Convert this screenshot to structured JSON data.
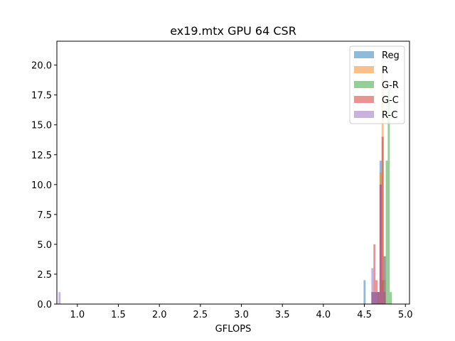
{
  "chart_data": {
    "type": "histogram",
    "title": "ex19.mtx GPU 64 CSR",
    "xlabel": "GFLOPS",
    "ylabel": "",
    "xlim": [
      0.75,
      5.05
    ],
    "ylim": [
      0,
      22
    ],
    "xticks": [
      1.0,
      1.5,
      2.0,
      2.5,
      3.0,
      3.5,
      4.0,
      4.5,
      5.0
    ],
    "xtick_labels": [
      "1.0",
      "1.5",
      "2.0",
      "2.5",
      "3.0",
      "3.5",
      "4.0",
      "4.5",
      "5.0"
    ],
    "yticks": [
      0,
      2.5,
      5,
      7.5,
      10,
      12.5,
      15,
      17.5,
      20
    ],
    "ytick_labels": [
      "0.0",
      "2.5",
      "5.0",
      "7.5",
      "10.0",
      "12.5",
      "15.0",
      "17.5",
      "20.0"
    ],
    "grid": false,
    "legend_position": "top-right",
    "series": [
      {
        "name": "Reg",
        "color": "#1f77b4",
        "bins": [
          {
            "x0": 4.49,
            "x1": 4.515,
            "count": 2
          },
          {
            "x0": 4.585,
            "x1": 4.61,
            "count": 1
          },
          {
            "x0": 4.61,
            "x1": 4.635,
            "count": 1
          },
          {
            "x0": 4.635,
            "x1": 4.66,
            "count": 1
          },
          {
            "x0": 4.66,
            "x1": 4.685,
            "count": 1
          },
          {
            "x0": 4.685,
            "x1": 4.71,
            "count": 12
          },
          {
            "x0": 4.71,
            "x1": 4.735,
            "count": 2
          }
        ]
      },
      {
        "name": "R",
        "color": "#ff7f0e",
        "bins": [
          {
            "x0": 4.66,
            "x1": 4.685,
            "count": 1
          },
          {
            "x0": 4.685,
            "x1": 4.71,
            "count": 11
          },
          {
            "x0": 4.71,
            "x1": 4.735,
            "count": 20
          },
          {
            "x0": 4.735,
            "x1": 4.76,
            "count": 2
          }
        ]
      },
      {
        "name": "G-R",
        "color": "#2ca02c",
        "bins": [
          {
            "x0": 4.735,
            "x1": 4.76,
            "count": 4
          },
          {
            "x0": 4.76,
            "x1": 4.785,
            "count": 12
          },
          {
            "x0": 4.785,
            "x1": 4.81,
            "count": 18
          },
          {
            "x0": 4.81,
            "x1": 4.835,
            "count": 1
          }
        ]
      },
      {
        "name": "G-C",
        "color": "#d62728",
        "bins": [
          {
            "x0": 4.585,
            "x1": 4.61,
            "count": 1
          },
          {
            "x0": 4.61,
            "x1": 4.635,
            "count": 5
          },
          {
            "x0": 4.635,
            "x1": 4.66,
            "count": 2
          },
          {
            "x0": 4.66,
            "x1": 4.685,
            "count": 1
          },
          {
            "x0": 4.685,
            "x1": 4.71,
            "count": 10
          },
          {
            "x0": 4.71,
            "x1": 4.735,
            "count": 14
          },
          {
            "x0": 4.735,
            "x1": 4.76,
            "count": 1
          }
        ]
      },
      {
        "name": "R-C",
        "color": "#9467bd",
        "bins": [
          {
            "x0": 0.77,
            "x1": 0.795,
            "count": 1
          },
          {
            "x0": 4.585,
            "x1": 4.61,
            "count": 3
          },
          {
            "x0": 4.61,
            "x1": 4.635,
            "count": 1
          },
          {
            "x0": 4.635,
            "x1": 4.66,
            "count": 1
          },
          {
            "x0": 4.66,
            "x1": 4.685,
            "count": 1
          },
          {
            "x0": 4.685,
            "x1": 4.71,
            "count": 10
          },
          {
            "x0": 4.71,
            "x1": 4.735,
            "count": 1
          },
          {
            "x0": 4.735,
            "x1": 4.76,
            "count": 4
          }
        ]
      }
    ]
  }
}
